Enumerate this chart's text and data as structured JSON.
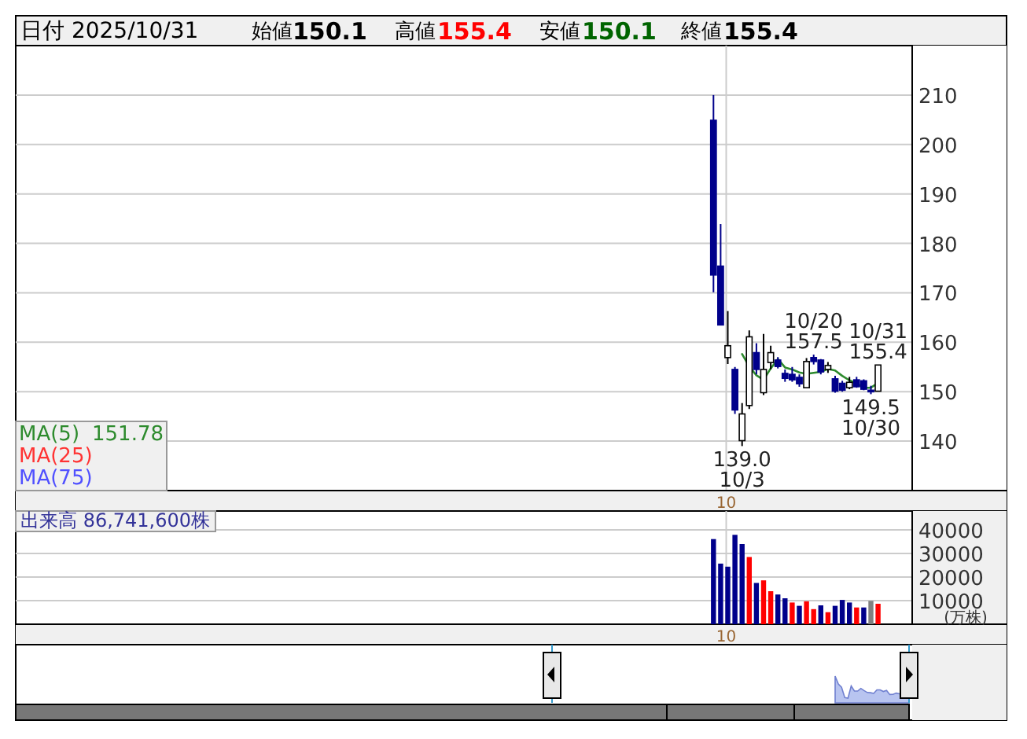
{
  "chart_data": [
    {
      "type": "candlestick",
      "categories": [
        null,
        null,
        "10",
        null,
        null,
        null,
        null,
        null,
        null,
        null,
        null,
        null,
        null,
        null,
        null,
        null,
        null,
        null,
        null,
        null,
        null,
        null,
        null,
        null
      ],
      "ohlc": [
        [
          204.9,
          210.0,
          170.1,
          173.6
        ],
        [
          175.4,
          183.9,
          163.5,
          163.5
        ],
        [
          156.9,
          166.3,
          155.6,
          159.3
        ],
        [
          154.5,
          155.0,
          145.5,
          146.3
        ],
        [
          140.1,
          147.7,
          139.0,
          145.5
        ],
        [
          147.2,
          162.4,
          146.5,
          161.1
        ],
        [
          157.9,
          159.8,
          153.5,
          154.5
        ],
        [
          149.8,
          161.7,
          149.3,
          154.5
        ],
        [
          155.9,
          159.3,
          154.5,
          157.9
        ],
        [
          156.4,
          157.0,
          154.7,
          155.1
        ],
        [
          153.7,
          154.5,
          152.0,
          152.7
        ],
        [
          153.5,
          155.0,
          152.0,
          152.4
        ],
        [
          152.9,
          153.5,
          151.0,
          151.6
        ],
        [
          150.8,
          156.8,
          150.8,
          156.1
        ],
        [
          156.9,
          157.5,
          155.5,
          156.1
        ],
        [
          156.4,
          156.6,
          153.5,
          154.0
        ],
        [
          154.5,
          156.0,
          153.8,
          155.3
        ],
        [
          152.6,
          153.2,
          149.8,
          150.1
        ],
        [
          151.7,
          152.2,
          150.0,
          150.3
        ],
        [
          150.8,
          153.0,
          150.5,
          151.9
        ],
        [
          152.4,
          153.0,
          150.8,
          151.0
        ],
        [
          152.2,
          152.5,
          150.3,
          150.5
        ],
        [
          150.3,
          151.2,
          149.5,
          150.1
        ],
        [
          150.1,
          155.4,
          150.1,
          155.4
        ]
      ],
      "colors": [
        "#00008b",
        "#00008b",
        "#ffffff",
        "#00008b",
        "#ffffff",
        "#ffffff",
        "#00008b",
        "#ffffff",
        "#ffffff",
        "#00008b",
        "#00008b",
        "#00008b",
        "#00008b",
        "#ffffff",
        "#00008b",
        "#00008b",
        "#ffffff",
        "#00008b",
        "#00008b",
        "#ffffff",
        "#00008b",
        "#00008b",
        "#00008b",
        "#ffffff"
      ],
      "series": [
        {
          "name": "MA(5)",
          "type": "line",
          "color": "#2e8b2e",
          "values": [
            null,
            null,
            null,
            null,
            157.6,
            155.1,
            153.3,
            152.4,
            154.7,
            156.6,
            154.9,
            154.5,
            153.9,
            153.6,
            153.8,
            154.0,
            154.6,
            154.3,
            153.2,
            152.3,
            151.7,
            150.8,
            150.8,
            151.78
          ]
        },
        {
          "name": "MA(25)",
          "type": "line",
          "color": "#ff3333",
          "values": [
            null,
            null,
            null,
            null,
            null,
            null,
            null,
            null,
            null,
            null,
            null,
            null,
            null,
            null,
            null,
            null,
            null,
            null,
            null,
            null,
            null,
            null,
            null,
            null
          ]
        },
        {
          "name": "MA(75)",
          "type": "line",
          "color": "#5050ff",
          "values": [
            null,
            null,
            null,
            null,
            null,
            null,
            null,
            null,
            null,
            null,
            null,
            null,
            null,
            null,
            null,
            null,
            null,
            null,
            null,
            null,
            null,
            null,
            null,
            null
          ]
        }
      ],
      "ylim": [
        130,
        220
      ],
      "yticks": [
        140,
        150,
        160,
        170,
        180,
        190,
        200,
        210
      ],
      "grid": true,
      "legend": "bottom left",
      "annotations": [
        "日付 2025/10/31",
        "始値",
        "150.1",
        "高値",
        "155.4",
        "安値",
        "150.1",
        "終値",
        "155.4",
        "151.78",
        {
          "text": "10/20\n157.5",
          "y": 157.5
        },
        {
          "text": "10/31\n155.4",
          "y": 155.4
        },
        {
          "text": "149.5\n10/30",
          "y": 149.5
        },
        {
          "text": "139.0\n10/3",
          "y": 139.0
        }
      ]
    },
    {
      "type": "bar",
      "categories": [
        null,
        null,
        "10",
        null,
        null,
        null,
        null,
        null,
        null,
        null,
        null,
        null,
        null,
        null,
        null,
        null,
        null,
        null,
        null,
        null,
        null,
        null,
        null,
        null
      ],
      "values": [
        36100,
        25700,
        24400,
        37900,
        34000,
        28500,
        17500,
        18600,
        14000,
        12600,
        11000,
        9200,
        7800,
        9700,
        6400,
        8000,
        5100,
        7800,
        10300,
        9200,
        7100,
        7100,
        9900,
        8674
      ],
      "colors": [
        "#00008b",
        "#00008b",
        "#00008b",
        "#00008b",
        "#00008b",
        "#ff0000",
        "#00008b",
        "#ff0000",
        "#ff0000",
        "#00008b",
        "#00008b",
        "#ff0000",
        "#00008b",
        "#ff0000",
        "#ff0000",
        "#00008b",
        "#ff0000",
        "#00008b",
        "#00008b",
        "#00008b",
        "#ff0000",
        "#00008b",
        "#808080",
        "#ff0000"
      ],
      "ylim": [
        0,
        48000
      ],
      "yticks": [
        10000,
        20000,
        30000,
        40000
      ],
      "grid": true,
      "ylabel": "(万株)",
      "annotations": [
        "出来高 86,741,600株"
      ]
    }
  ]
}
